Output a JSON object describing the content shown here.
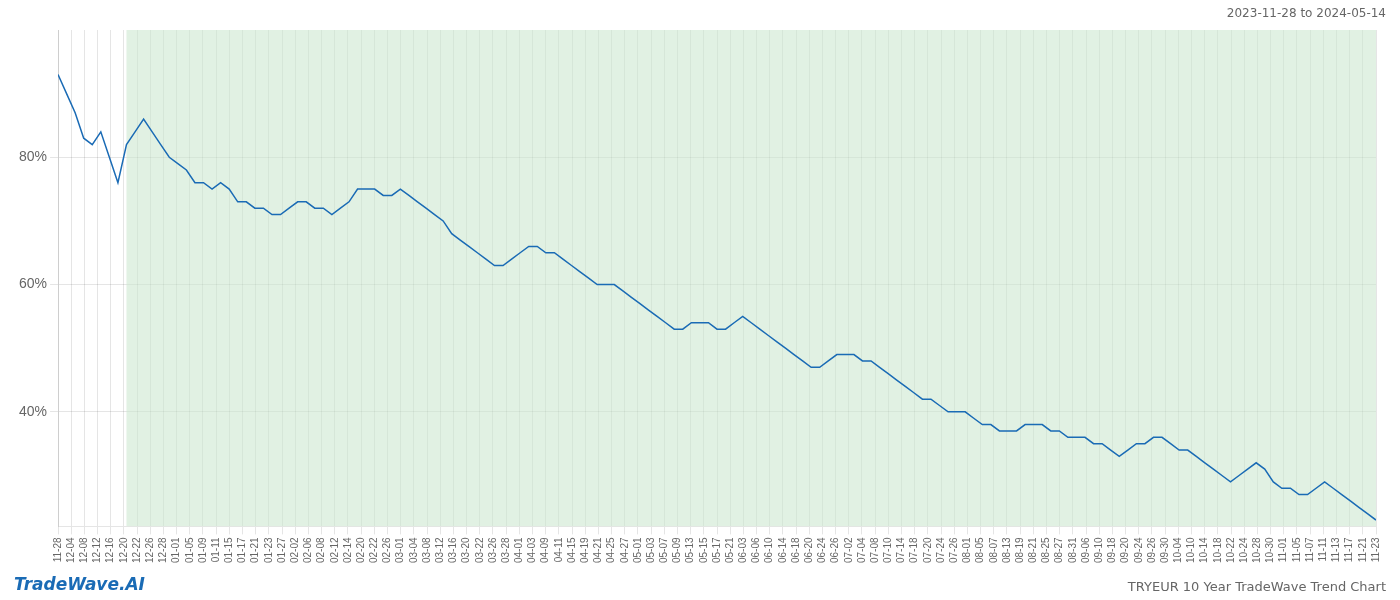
{
  "chart_data": {
    "type": "line",
    "annotations": [
      "2023-11-28 to 2024-05-14",
      "TradeWave.AI",
      "TRYEUR 10 Year TradeWave Trend Chart"
    ],
    "background_color": "#ffffff",
    "x": [
      0,
      1,
      2,
      3,
      4,
      5,
      6,
      7,
      8,
      9,
      10,
      11,
      12,
      13,
      14,
      15,
      16,
      17,
      18,
      19,
      20,
      21,
      22,
      23,
      24,
      25,
      26,
      27,
      28,
      29,
      30,
      31,
      32,
      33,
      34,
      35,
      36,
      37,
      38,
      39,
      40,
      41,
      42,
      43,
      44,
      45,
      46,
      47,
      48,
      49,
      50,
      51,
      52,
      53,
      54,
      55,
      56,
      57,
      58,
      59,
      60,
      61,
      62,
      63,
      64,
      65,
      66,
      67,
      68,
      69,
      70,
      71,
      72,
      73,
      74,
      75,
      76,
      77,
      78,
      79,
      80,
      81,
      82,
      83,
      84,
      85,
      86,
      87,
      88,
      89,
      90,
      91,
      92,
      93,
      94,
      95,
      96,
      97,
      98,
      99,
      100,
      101,
      102,
      103,
      104,
      105,
      106,
      107,
      108,
      109,
      110,
      111,
      112,
      113,
      114,
      115,
      116,
      117,
      118,
      119,
      120,
      121,
      122,
      123,
      124,
      125,
      126,
      127,
      128,
      129,
      130,
      131,
      132,
      133,
      134,
      135,
      136,
      137,
      138,
      139,
      140,
      141,
      142,
      143,
      144,
      145,
      146,
      147,
      148,
      149,
      150,
      151,
      152,
      153,
      154
    ],
    "values": [
      93,
      90,
      87,
      83,
      82,
      84,
      80,
      76,
      82,
      84,
      86,
      84,
      82,
      80,
      79,
      78,
      76,
      76,
      75,
      76,
      75,
      73,
      73,
      72,
      72,
      71,
      71,
      72,
      73,
      73,
      72,
      72,
      71,
      72,
      73,
      75,
      75,
      75,
      74,
      74,
      75,
      74,
      73,
      72,
      71,
      70,
      68,
      67,
      66,
      65,
      64,
      63,
      63,
      64,
      65,
      66,
      66,
      65,
      65,
      64,
      63,
      62,
      61,
      60,
      60,
      60,
      59,
      58,
      57,
      56,
      55,
      54,
      53,
      53,
      54,
      54,
      54,
      53,
      53,
      54,
      55,
      54,
      53,
      52,
      51,
      50,
      49,
      48,
      47,
      47,
      48,
      49,
      49,
      49,
      48,
      48,
      47,
      46,
      45,
      44,
      43,
      42,
      42,
      41,
      40,
      40,
      40,
      39,
      38,
      38,
      37,
      37,
      37,
      38,
      38,
      38,
      37,
      37,
      36,
      36,
      36,
      35,
      35,
      34,
      33,
      34,
      35,
      35,
      36,
      36,
      35,
      34,
      34,
      33,
      32,
      31,
      30,
      29,
      30,
      31,
      32,
      31,
      29,
      28,
      28,
      27,
      27,
      28,
      29,
      28,
      27,
      26,
      25,
      24,
      23
    ],
    "color": "#1a6bb5",
    "shaded_region": {
      "x": [
        8,
        155
      ],
      "color": "#c8e6cc"
    },
    "xlim": [
      0,
      154
    ],
    "xticks": [
      {
        "value": 0,
        "label": "11-28"
      },
      {
        "value": 1.54,
        "label": "12-04"
      },
      {
        "value": 3.08,
        "label": "12-08"
      },
      {
        "value": 4.62,
        "label": "12-12"
      },
      {
        "value": 6.16,
        "label": "12-16"
      },
      {
        "value": 7.7,
        "label": "12-20"
      },
      {
        "value": 9.24,
        "label": "12-22"
      },
      {
        "value": 10.78,
        "label": "12-26"
      },
      {
        "value": 12.32,
        "label": "12-28"
      },
      {
        "value": 13.86,
        "label": "01-01"
      },
      {
        "value": 15.4,
        "label": "01-05"
      },
      {
        "value": 16.94,
        "label": "01-09"
      },
      {
        "value": 18.48,
        "label": "01-11"
      },
      {
        "value": 20.02,
        "label": "01-15"
      },
      {
        "value": 21.56,
        "label": "01-17"
      },
      {
        "value": 23.1,
        "label": "01-21"
      },
      {
        "value": 24.64,
        "label": "01-23"
      },
      {
        "value": 26.18,
        "label": "01-27"
      },
      {
        "value": 27.72,
        "label": "02-02"
      },
      {
        "value": 29.26,
        "label": "02-06"
      },
      {
        "value": 30.8,
        "label": "02-08"
      },
      {
        "value": 32.34,
        "label": "02-12"
      },
      {
        "value": 33.88,
        "label": "02-14"
      },
      {
        "value": 35.42,
        "label": "02-20"
      },
      {
        "value": 36.96,
        "label": "02-22"
      },
      {
        "value": 38.5,
        "label": "02-26"
      },
      {
        "value": 40.04,
        "label": "03-01"
      },
      {
        "value": 41.58,
        "label": "03-04"
      },
      {
        "value": 43.12,
        "label": "03-08"
      },
      {
        "value": 44.66,
        "label": "03-12"
      },
      {
        "value": 46.2,
        "label": "03-16"
      },
      {
        "value": 47.74,
        "label": "03-20"
      },
      {
        "value": 49.28,
        "label": "03-22"
      },
      {
        "value": 50.82,
        "label": "03-26"
      },
      {
        "value": 52.36,
        "label": "03-28"
      },
      {
        "value": 53.9,
        "label": "04-01"
      },
      {
        "value": 55.44,
        "label": "04-03"
      },
      {
        "value": 56.98,
        "label": "04-09"
      },
      {
        "value": 58.52,
        "label": "04-11"
      },
      {
        "value": 60.06,
        "label": "04-15"
      },
      {
        "value": 61.6,
        "label": "04-19"
      },
      {
        "value": 63.14,
        "label": "04-21"
      },
      {
        "value": 64.68,
        "label": "04-25"
      },
      {
        "value": 66.22,
        "label": "04-27"
      },
      {
        "value": 67.76,
        "label": "05-01"
      },
      {
        "value": 69.3,
        "label": "05-03"
      },
      {
        "value": 70.84,
        "label": "05-07"
      },
      {
        "value": 72.38,
        "label": "05-09"
      },
      {
        "value": 73.92,
        "label": "05-13"
      },
      {
        "value": 75.46,
        "label": "05-15"
      },
      {
        "value": 77,
        "label": "05-17"
      },
      {
        "value": 78.54,
        "label": "05-21"
      },
      {
        "value": 80.08,
        "label": "06-03"
      },
      {
        "value": 81.62,
        "label": "06-06"
      },
      {
        "value": 83.16,
        "label": "06-10"
      },
      {
        "value": 84.7,
        "label": "06-14"
      },
      {
        "value": 86.24,
        "label": "06-18"
      },
      {
        "value": 87.78,
        "label": "06-20"
      },
      {
        "value": 89.32,
        "label": "06-24"
      },
      {
        "value": 90.86,
        "label": "06-26"
      },
      {
        "value": 92.4,
        "label": "07-02"
      },
      {
        "value": 93.94,
        "label": "07-04"
      },
      {
        "value": 95.48,
        "label": "07-08"
      },
      {
        "value": 97.02,
        "label": "07-10"
      },
      {
        "value": 98.56,
        "label": "07-14"
      },
      {
        "value": 100.1,
        "label": "07-18"
      },
      {
        "value": 101.64,
        "label": "07-20"
      },
      {
        "value": 103.18,
        "label": "07-24"
      },
      {
        "value": 104.72,
        "label": "07-26"
      },
      {
        "value": 106.26,
        "label": "08-01"
      },
      {
        "value": 107.8,
        "label": "08-05"
      },
      {
        "value": 109.34,
        "label": "08-07"
      },
      {
        "value": 110.88,
        "label": "08-13"
      },
      {
        "value": 112.42,
        "label": "08-19"
      },
      {
        "value": 113.96,
        "label": "08-21"
      },
      {
        "value": 115.5,
        "label": "08-25"
      },
      {
        "value": 117.04,
        "label": "08-27"
      },
      {
        "value": 118.58,
        "label": "08-31"
      },
      {
        "value": 120.12,
        "label": "09-06"
      },
      {
        "value": 121.66,
        "label": "09-10"
      },
      {
        "value": 123.2,
        "label": "09-18"
      },
      {
        "value": 124.74,
        "label": "09-20"
      },
      {
        "value": 126.28,
        "label": "09-24"
      },
      {
        "value": 127.82,
        "label": "09-26"
      },
      {
        "value": 129.36,
        "label": "09-30"
      },
      {
        "value": 130.9,
        "label": "10-04"
      },
      {
        "value": 132.44,
        "label": "10-10"
      },
      {
        "value": 133.98,
        "label": "10-14"
      },
      {
        "value": 135.52,
        "label": "10-18"
      },
      {
        "value": 137.06,
        "label": "10-22"
      },
      {
        "value": 138.6,
        "label": "10-24"
      },
      {
        "value": 140.14,
        "label": "10-28"
      },
      {
        "value": 141.68,
        "label": "10-30"
      },
      {
        "value": 143.22,
        "label": "11-01"
      },
      {
        "value": 144.76,
        "label": "11-05"
      },
      {
        "value": 146.3,
        "label": "11-07"
      },
      {
        "value": 147.84,
        "label": "11-11"
      },
      {
        "value": 149.38,
        "label": "11-13"
      },
      {
        "value": 150.92,
        "label": "11-17"
      },
      {
        "value": 152.46,
        "label": "11-21"
      },
      {
        "value": 154,
        "label": "11-23"
      }
    ],
    "ylim": [
      22,
      100
    ],
    "yticks": [
      {
        "value": 40,
        "label": "40%"
      },
      {
        "value": 60,
        "label": "60%"
      },
      {
        "value": 80,
        "label": "80%"
      }
    ],
    "grid": true
  }
}
